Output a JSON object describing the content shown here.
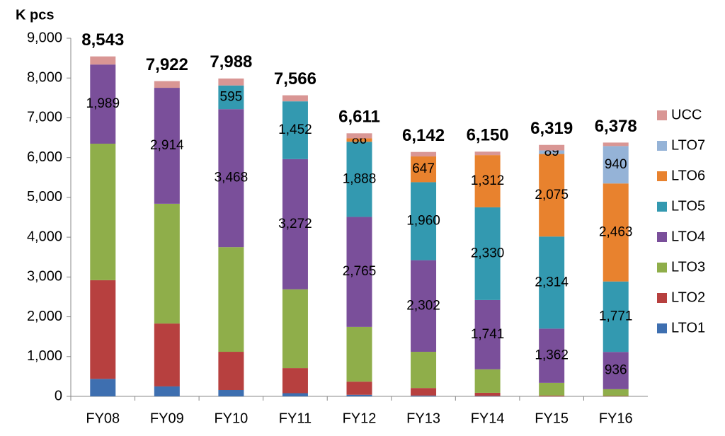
{
  "chart_data": {
    "type": "stacked_bar",
    "y_axis_label": "K pcs",
    "categories": [
      "FY08",
      "FY09",
      "FY10",
      "FY11",
      "FY12",
      "FY13",
      "FY14",
      "FY15",
      "FY16"
    ],
    "series": [
      {
        "name": "LTO1",
        "color": "#3e6fb0",
        "values": [
          440,
          250,
          160,
          80,
          40,
          20,
          10,
          null,
          null
        ],
        "value_labels": [
          null,
          null,
          null,
          null,
          null,
          null,
          null,
          null,
          null
        ]
      },
      {
        "name": "LTO2",
        "color": "#b7403f",
        "values": [
          2480,
          1580,
          960,
          630,
          330,
          190,
          80,
          20,
          10
        ],
        "value_labels": [
          null,
          null,
          null,
          null,
          null,
          null,
          null,
          null,
          null
        ]
      },
      {
        "name": "LTO3",
        "color": "#8fae4a",
        "values": [
          3430,
          3010,
          2630,
          1980,
          1375,
          910,
          590,
          320,
          170
        ],
        "value_labels": [
          null,
          null,
          null,
          null,
          null,
          null,
          null,
          null,
          null
        ]
      },
      {
        "name": "LTO4",
        "color": "#7a4f9a",
        "values": [
          1989,
          2914,
          3468,
          3272,
          2765,
          2302,
          1741,
          1362,
          936
        ],
        "value_labels": [
          "1,989",
          "2,914",
          "3,468",
          "3,272",
          "2,765",
          "2,302",
          "1,741",
          "1,362",
          "936"
        ]
      },
      {
        "name": "LTO5",
        "color": "#3399b0",
        "values": [
          null,
          null,
          595,
          1452,
          1888,
          1960,
          2330,
          2314,
          1771
        ],
        "value_labels": [
          null,
          null,
          "595",
          "1,452",
          "1,888",
          "1,960",
          "2,330",
          "2,314",
          "1,771"
        ]
      },
      {
        "name": "LTO6",
        "color": "#e8822e",
        "values": [
          null,
          null,
          null,
          null,
          86,
          647,
          1312,
          2075,
          2463
        ],
        "value_labels": [
          null,
          null,
          null,
          null,
          "86",
          "647",
          "1,312",
          "2,075",
          "2,463"
        ]
      },
      {
        "name": "LTO7",
        "color": "#95b3d7",
        "values": [
          null,
          null,
          null,
          null,
          null,
          null,
          null,
          89,
          940
        ],
        "value_labels": [
          null,
          null,
          null,
          null,
          null,
          null,
          null,
          "89",
          "940"
        ]
      },
      {
        "name": "UCC",
        "color": "#d99694",
        "values": [
          204,
          168,
          175,
          152,
          127,
          113,
          87,
          139,
          88
        ],
        "value_labels": [
          null,
          null,
          null,
          null,
          null,
          null,
          null,
          null,
          null
        ]
      }
    ],
    "totals": [
      8543,
      7922,
      7988,
      7566,
      6611,
      6142,
      6150,
      6319,
      6378
    ],
    "totals_labels": [
      "8,543",
      "7,922",
      "7,988",
      "7,566",
      "6,611",
      "6,142",
      "6,150",
      "6,319",
      "6,378"
    ],
    "ylim": [
      0,
      9000
    ],
    "yticks": [
      0,
      {
        "value": 1000,
        "label": "1,000"
      },
      {
        "value": 2000,
        "label": "2,000"
      },
      {
        "value": 3000,
        "label": "3,000"
      },
      {
        "value": 4000,
        "label": "4,000"
      },
      {
        "value": 5000,
        "label": "5,000"
      },
      {
        "value": 6000,
        "label": "6,000"
      },
      {
        "value": 7000,
        "label": "7,000"
      },
      {
        "value": 8000,
        "label": "8,000"
      },
      {
        "value": 9000,
        "label": "9,000"
      }
    ],
    "legend": "right"
  }
}
